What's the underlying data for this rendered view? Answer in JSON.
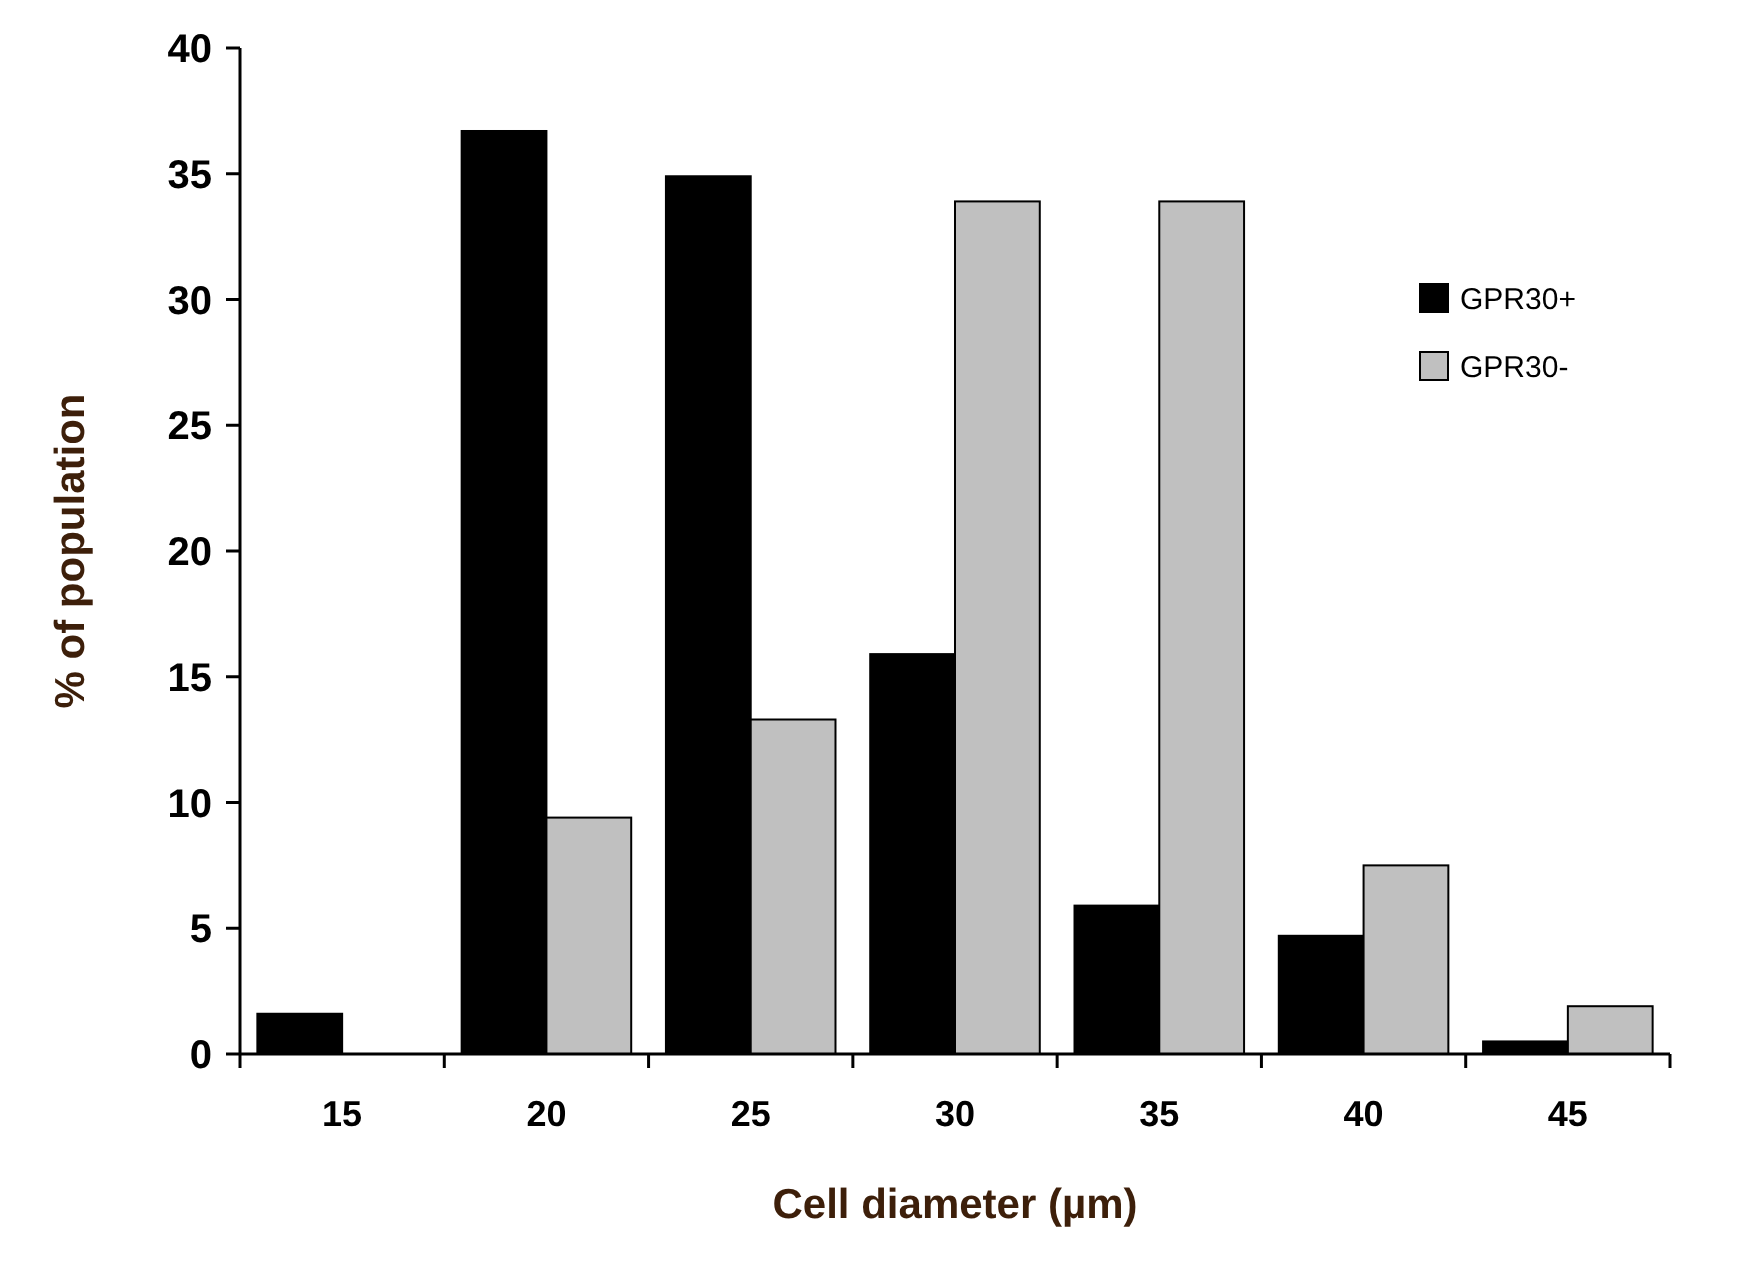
{
  "chart_data": {
    "type": "bar",
    "xlabel": "Cell diameter (µm)",
    "ylabel": "% of population",
    "categories": [
      "15",
      "20",
      "25",
      "30",
      "35",
      "40",
      "45"
    ],
    "series": [
      {
        "name": "GPR30+",
        "color": "#000000",
        "values": [
          1.6,
          36.7,
          34.9,
          15.9,
          5.9,
          4.7,
          0.5
        ]
      },
      {
        "name": "GPR30-",
        "color": "#c0c0c0",
        "values": [
          0,
          9.4,
          13.3,
          33.9,
          33.9,
          7.5,
          1.9
        ]
      }
    ],
    "ylim": [
      0,
      40
    ],
    "yticks": [
      0,
      5,
      10,
      15,
      20,
      25,
      30,
      35,
      40
    ],
    "grid": false,
    "legend": "top right"
  }
}
